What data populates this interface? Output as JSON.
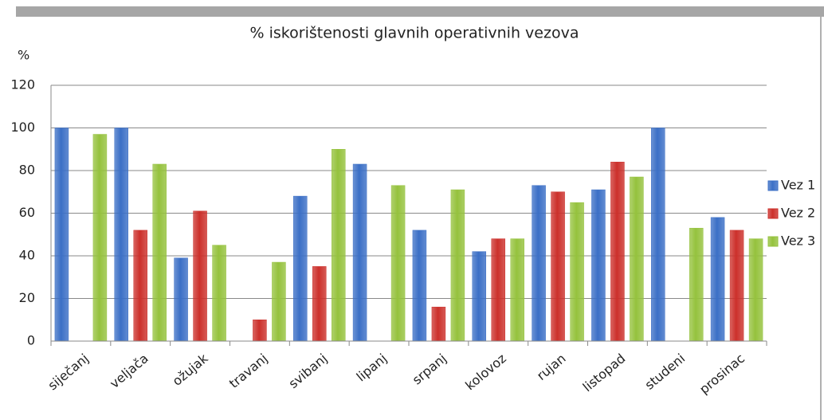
{
  "chart_data": {
    "type": "bar",
    "title": "% iskorištenosti glavnih operativnih vezova",
    "y_axis_label": "%",
    "categories": [
      "siječanj",
      "veljača",
      "ožujak",
      "travanj",
      "svibanj",
      "lipanj",
      "srpanj",
      "kolovoz",
      "rujan",
      "listopad",
      "studeni",
      "prosinac"
    ],
    "series": [
      {
        "name": "Vez 1",
        "color": "#3b6fc6",
        "values": [
          100,
          100,
          39,
          0,
          68,
          83,
          52,
          42,
          73,
          71,
          100,
          58
        ]
      },
      {
        "name": "Vez 2",
        "color": "#cc302b",
        "values": [
          0,
          52,
          61,
          10,
          35,
          0,
          16,
          48,
          70,
          84,
          0,
          52
        ]
      },
      {
        "name": "Vez 3",
        "color": "#95c23d",
        "values": [
          97,
          83,
          45,
          37,
          90,
          73,
          71,
          48,
          65,
          77,
          53,
          48
        ]
      }
    ],
    "ylim": [
      0,
      120
    ],
    "yticks": [
      0,
      20,
      40,
      60,
      80,
      100,
      120
    ],
    "grid": true,
    "legend": "right"
  }
}
